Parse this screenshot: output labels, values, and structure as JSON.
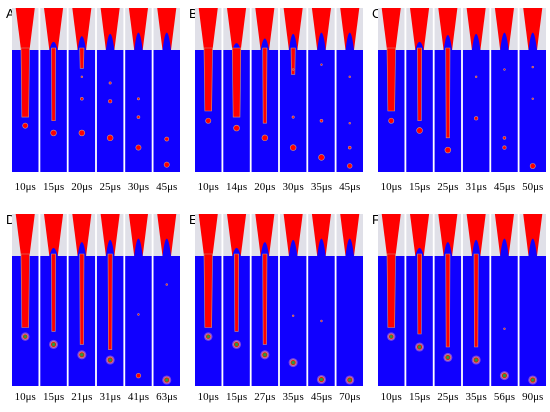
{
  "colors": {
    "fluid": "#ff0000",
    "ambient": "#1000ff",
    "nozzle_wall": "#e0e0e8",
    "interface": "#c89a86",
    "core": "#2e9a3a",
    "halo": "#b060d0"
  },
  "panels": [
    {
      "label": "A",
      "times": [
        "10μs",
        "15μs",
        "20μs",
        "25μs",
        "30μs",
        "45μs"
      ],
      "style": "plain",
      "frames": [
        {
          "neck": 0.0,
          "filament": 0.55,
          "drops": [
            [
              0.62,
              0.09
            ]
          ]
        },
        {
          "neck": 0.35,
          "filament": 0.58,
          "drops": [
            [
              0.68,
              0.1
            ]
          ]
        },
        {
          "neck": 0.6,
          "filament": 0.15,
          "drops": [
            [
              0.22,
              0.03
            ],
            [
              0.4,
              0.05
            ],
            [
              0.68,
              0.1
            ]
          ]
        },
        {
          "neck": 0.7,
          "filament": 0.0,
          "drops": [
            [
              0.27,
              0.04
            ],
            [
              0.42,
              0.06
            ],
            [
              0.72,
              0.1
            ]
          ]
        },
        {
          "neck": 0.75,
          "filament": 0.0,
          "drops": [
            [
              0.4,
              0.04
            ],
            [
              0.55,
              0.05
            ],
            [
              0.8,
              0.09
            ]
          ]
        },
        {
          "neck": 0.75,
          "filament": 0.0,
          "drops": [
            [
              0.73,
              0.07
            ],
            [
              0.94,
              0.09
            ]
          ]
        }
      ]
    },
    {
      "label": "B",
      "times": [
        "10μs",
        "14μs",
        "20μs",
        "30μs",
        "35μs",
        "45μs"
      ],
      "style": "plain",
      "frames": [
        {
          "neck": 0.0,
          "filament": 0.5,
          "drops": [
            [
              0.58,
              0.09
            ]
          ]
        },
        {
          "neck": 0.3,
          "filament": 0.55,
          "drops": [
            [
              0.64,
              0.1
            ]
          ]
        },
        {
          "neck": 0.5,
          "filament": 0.6,
          "drops": [
            [
              0.72,
              0.1
            ]
          ]
        },
        {
          "neck": 0.7,
          "filament": 0.2,
          "drops": [
            [
              0.16,
              0.02
            ],
            [
              0.55,
              0.04
            ],
            [
              0.8,
              0.1
            ]
          ]
        },
        {
          "neck": 0.75,
          "filament": 0.0,
          "drops": [
            [
              0.12,
              0.02
            ],
            [
              0.58,
              0.05
            ],
            [
              0.88,
              0.1
            ]
          ]
        },
        {
          "neck": 0.75,
          "filament": 0.0,
          "drops": [
            [
              0.22,
              0.02
            ],
            [
              0.6,
              0.03
            ],
            [
              0.8,
              0.05
            ],
            [
              0.95,
              0.08
            ]
          ]
        }
      ]
    },
    {
      "label": "C",
      "times": [
        "10μs",
        "15μs",
        "25μs",
        "31μs",
        "45μs",
        "50μs"
      ],
      "style": "plain",
      "frames": [
        {
          "neck": 0.0,
          "filament": 0.5,
          "drops": [
            [
              0.58,
              0.09
            ]
          ]
        },
        {
          "neck": 0.35,
          "filament": 0.58,
          "drops": [
            [
              0.66,
              0.1
            ]
          ]
        },
        {
          "neck": 0.65,
          "filament": 0.72,
          "drops": [
            [
              0.82,
              0.1
            ]
          ]
        },
        {
          "neck": 0.7,
          "filament": 0.0,
          "drops": [
            [
              0.22,
              0.02
            ],
            [
              0.56,
              0.06
            ]
          ]
        },
        {
          "neck": 0.75,
          "filament": 0.0,
          "drops": [
            [
              0.16,
              0.02
            ],
            [
              0.72,
              0.05
            ],
            [
              0.8,
              0.06
            ]
          ]
        },
        {
          "neck": 0.75,
          "filament": 0.0,
          "drops": [
            [
              0.14,
              0.02
            ],
            [
              0.4,
              0.02
            ],
            [
              0.98,
              0.09
            ]
          ]
        }
      ]
    },
    {
      "label": "D",
      "times": [
        "10μs",
        "15μs",
        "21μs",
        "31μs",
        "41μs",
        "63μs"
      ],
      "style": "core",
      "frames": [
        {
          "neck": 0.0,
          "filament": 0.55,
          "drops": [
            [
              0.62,
              0.09
            ]
          ]
        },
        {
          "neck": 0.35,
          "filament": 0.58,
          "drops": [
            [
              0.68,
              0.1
            ]
          ]
        },
        {
          "neck": 0.6,
          "filament": 0.68,
          "drops": [
            [
              0.76,
              0.1
            ]
          ]
        },
        {
          "neck": 0.7,
          "filament": 0.72,
          "drops": [
            [
              0.8,
              0.1
            ]
          ]
        },
        {
          "neck": 0.75,
          "filament": 0.0,
          "drops": [
            [
              0.45,
              0.02
            ],
            [
              0.92,
              0.08
            ]
          ]
        },
        {
          "neck": 0.75,
          "filament": 0.0,
          "drops": [
            [
              0.22,
              0.02
            ],
            [
              1.1,
              0.1
            ]
          ]
        }
      ]
    },
    {
      "label": "E",
      "times": [
        "10μs",
        "15μs",
        "27μs",
        "35μs",
        "45μs",
        "70μs"
      ],
      "style": "core",
      "frames": [
        {
          "neck": 0.0,
          "filament": 0.55,
          "drops": [
            [
              0.62,
              0.09
            ]
          ]
        },
        {
          "neck": 0.35,
          "filament": 0.58,
          "drops": [
            [
              0.68,
              0.1
            ]
          ]
        },
        {
          "neck": 0.6,
          "filament": 0.68,
          "drops": [
            [
              0.76,
              0.1
            ]
          ]
        },
        {
          "neck": 0.7,
          "filament": 0.0,
          "drops": [
            [
              0.46,
              0.02
            ],
            [
              0.82,
              0.1
            ]
          ]
        },
        {
          "neck": 0.75,
          "filament": 0.0,
          "drops": [
            [
              0.5,
              0.02
            ],
            [
              0.95,
              0.1
            ]
          ]
        },
        {
          "neck": 0.75,
          "filament": 0.0,
          "drops": [
            [
              1.12,
              0.1
            ]
          ]
        }
      ]
    },
    {
      "label": "F",
      "times": [
        "10μs",
        "15μs",
        "25μs",
        "35μs",
        "56μs",
        "90μs"
      ],
      "style": "core",
      "frames": [
        {
          "neck": 0.0,
          "filament": 0.55,
          "drops": [
            [
              0.62,
              0.09
            ]
          ]
        },
        {
          "neck": 0.35,
          "filament": 0.6,
          "drops": [
            [
              0.7,
              0.1
            ]
          ]
        },
        {
          "neck": 0.6,
          "filament": 0.7,
          "drops": [
            [
              0.78,
              0.1
            ]
          ]
        },
        {
          "neck": 0.7,
          "filament": 0.7,
          "drops": [
            [
              0.8,
              0.1
            ]
          ]
        },
        {
          "neck": 0.75,
          "filament": 0.0,
          "drops": [
            [
              0.56,
              0.02
            ],
            [
              0.92,
              0.1
            ]
          ]
        },
        {
          "neck": 0.75,
          "filament": 0.0,
          "drops": [
            [
              1.12,
              0.1
            ]
          ]
        }
      ]
    }
  ]
}
